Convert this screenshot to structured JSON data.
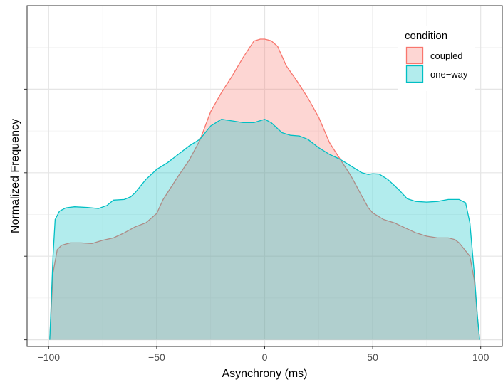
{
  "chart_data": {
    "type": "area",
    "title": "",
    "xlabel": "Asynchrony (ms)",
    "ylabel": "Normalized Frequency",
    "xlim": [
      -110,
      110
    ],
    "ylim": [
      -0.02,
      1.0
    ],
    "x_ticks": [
      -100,
      -50,
      0,
      50,
      100
    ],
    "x_tick_labels": [
      "−100",
      "−50",
      "0",
      "50",
      "100"
    ],
    "y_ticks": [
      0.0,
      0.25,
      0.5,
      0.75
    ],
    "y_tick_labels": [
      "",
      "",
      "",
      ""
    ],
    "grid": true,
    "legend": {
      "title": "condition",
      "position": "top-right"
    },
    "series": [
      {
        "name": "coupled",
        "fill": "#f8766d",
        "stroke": "#f8766d",
        "points": [
          [
            -99.5,
            0.0
          ],
          [
            -99,
            0.07
          ],
          [
            -98,
            0.2
          ],
          [
            -96,
            0.27
          ],
          [
            -94,
            0.283
          ],
          [
            -90,
            0.29
          ],
          [
            -85,
            0.29
          ],
          [
            -80,
            0.288
          ],
          [
            -75,
            0.298
          ],
          [
            -70,
            0.305
          ],
          [
            -65,
            0.32
          ],
          [
            -60,
            0.338
          ],
          [
            -55,
            0.35
          ],
          [
            -50,
            0.378
          ],
          [
            -47,
            0.42
          ],
          [
            -43,
            0.46
          ],
          [
            -40,
            0.49
          ],
          [
            -35,
            0.537
          ],
          [
            -30,
            0.597
          ],
          [
            -25,
            0.683
          ],
          [
            -20,
            0.74
          ],
          [
            -15,
            0.79
          ],
          [
            -10,
            0.845
          ],
          [
            -5,
            0.894
          ],
          [
            -2,
            0.9
          ],
          [
            0,
            0.9
          ],
          [
            3,
            0.895
          ],
          [
            6,
            0.878
          ],
          [
            10,
            0.82
          ],
          [
            15,
            0.774
          ],
          [
            20,
            0.724
          ],
          [
            25,
            0.666
          ],
          [
            30,
            0.59
          ],
          [
            35,
            0.54
          ],
          [
            40,
            0.49
          ],
          [
            45,
            0.43
          ],
          [
            48,
            0.395
          ],
          [
            50,
            0.38
          ],
          [
            55,
            0.36
          ],
          [
            60,
            0.35
          ],
          [
            65,
            0.335
          ],
          [
            70,
            0.32
          ],
          [
            75,
            0.31
          ],
          [
            80,
            0.305
          ],
          [
            85,
            0.305
          ],
          [
            88,
            0.3
          ],
          [
            90,
            0.29
          ],
          [
            95,
            0.25
          ],
          [
            97,
            0.18
          ],
          [
            98.5,
            0.07
          ],
          [
            99.5,
            0.0
          ]
        ]
      },
      {
        "name": "one−way",
        "fill": "#00bfc4",
        "stroke": "#00bfc4",
        "points": [
          [
            -99.5,
            0.0
          ],
          [
            -99,
            0.08
          ],
          [
            -98,
            0.25
          ],
          [
            -97,
            0.36
          ],
          [
            -95,
            0.385
          ],
          [
            -92,
            0.395
          ],
          [
            -88,
            0.398
          ],
          [
            -82,
            0.396
          ],
          [
            -77,
            0.393
          ],
          [
            -73,
            0.402
          ],
          [
            -70,
            0.418
          ],
          [
            -65,
            0.42
          ],
          [
            -62,
            0.428
          ],
          [
            -60,
            0.44
          ],
          [
            -55,
            0.48
          ],
          [
            -50,
            0.51
          ],
          [
            -45,
            0.53
          ],
          [
            -40,
            0.555
          ],
          [
            -35,
            0.58
          ],
          [
            -30,
            0.6
          ],
          [
            -25,
            0.64
          ],
          [
            -20,
            0.66
          ],
          [
            -15,
            0.655
          ],
          [
            -10,
            0.65
          ],
          [
            -5,
            0.65
          ],
          [
            0,
            0.66
          ],
          [
            3,
            0.65
          ],
          [
            8,
            0.62
          ],
          [
            12,
            0.612
          ],
          [
            16,
            0.61
          ],
          [
            20,
            0.6
          ],
          [
            25,
            0.575
          ],
          [
            30,
            0.555
          ],
          [
            35,
            0.54
          ],
          [
            40,
            0.52
          ],
          [
            45,
            0.5
          ],
          [
            48,
            0.495
          ],
          [
            50,
            0.497
          ],
          [
            53,
            0.496
          ],
          [
            57,
            0.48
          ],
          [
            62,
            0.45
          ],
          [
            66,
            0.422
          ],
          [
            70,
            0.414
          ],
          [
            75,
            0.412
          ],
          [
            80,
            0.414
          ],
          [
            85,
            0.42
          ],
          [
            90,
            0.42
          ],
          [
            93,
            0.41
          ],
          [
            95,
            0.35
          ],
          [
            97,
            0.2
          ],
          [
            98.5,
            0.07
          ],
          [
            99.5,
            0.0
          ]
        ]
      }
    ]
  }
}
